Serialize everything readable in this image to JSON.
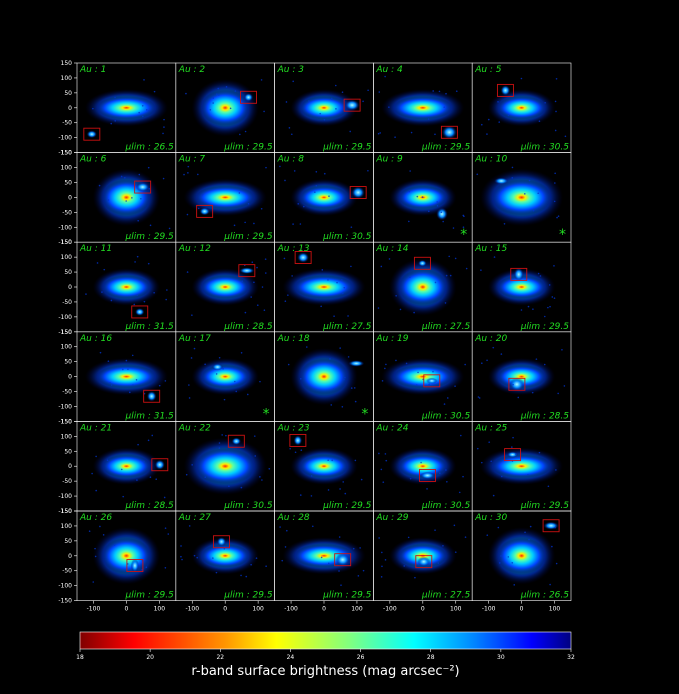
{
  "colors": {
    "background": "#000000",
    "panel_label": "#22dd22",
    "frame": "#ffffff",
    "box": "#cc1111",
    "tick_text": "#ffffff"
  },
  "chart_data": {
    "type": "heatmap",
    "layout": "6x5 grid of surface brightness maps",
    "xlim": [
      -150,
      150
    ],
    "ylim": [
      -150,
      150
    ],
    "x_ticks": [
      "-100",
      "0",
      "100"
    ],
    "y_ticks": [
      "150",
      "100",
      "50",
      "0",
      "-50",
      "-100",
      "-150"
    ],
    "colorbar": {
      "min": 18,
      "max": 32,
      "ticks": [
        "18",
        "20",
        "22",
        "24",
        "26",
        "28",
        "30",
        "32"
      ],
      "label": "r-band surface brightness (mag arcsec⁻²)",
      "colormap": "jet_r",
      "colors": [
        "#800000",
        "#ff0000",
        "#ff8000",
        "#ffff00",
        "#80ff80",
        "#00ffff",
        "#0080ff",
        "#0000ff",
        "#000080"
      ]
    },
    "panels": [
      {
        "label": "Au : 1",
        "mu_lim": "μlim : 26.5"
      },
      {
        "label": "Au : 2",
        "mu_lim": "μlim : 29.5"
      },
      {
        "label": "Au : 3",
        "mu_lim": "μlim : 29.5"
      },
      {
        "label": "Au : 4",
        "mu_lim": "μlim : 29.5"
      },
      {
        "label": "Au : 5",
        "mu_lim": "μlim : 30.5"
      },
      {
        "label": "Au : 6",
        "mu_lim": "μlim : 29.5"
      },
      {
        "label": "Au : 7",
        "mu_lim": "μlim : 29.5"
      },
      {
        "label": "Au : 8",
        "mu_lim": "μlim : 30.5"
      },
      {
        "label": "Au : 9",
        "mu_lim": "*"
      },
      {
        "label": "Au : 10",
        "mu_lim": "*"
      },
      {
        "label": "Au : 11",
        "mu_lim": "μlim : 31.5"
      },
      {
        "label": "Au : 12",
        "mu_lim": "μlim : 28.5"
      },
      {
        "label": "Au : 13",
        "mu_lim": "μlim : 27.5"
      },
      {
        "label": "Au : 14",
        "mu_lim": "μlim : 27.5"
      },
      {
        "label": "Au : 15",
        "mu_lim": "μlim : 29.5"
      },
      {
        "label": "Au : 16",
        "mu_lim": "μlim : 31.5"
      },
      {
        "label": "Au : 17",
        "mu_lim": "*"
      },
      {
        "label": "Au : 18",
        "mu_lim": "*"
      },
      {
        "label": "Au : 19",
        "mu_lim": "μlim : 30.5"
      },
      {
        "label": "Au : 20",
        "mu_lim": "μlim : 28.5"
      },
      {
        "label": "Au : 21",
        "mu_lim": "μlim : 28.5"
      },
      {
        "label": "Au : 22",
        "mu_lim": "μlim : 30.5"
      },
      {
        "label": "Au : 23",
        "mu_lim": "μlim : 29.5"
      },
      {
        "label": "Au : 24",
        "mu_lim": "μlim : 30.5"
      },
      {
        "label": "Au : 25",
        "mu_lim": "μlim : 29.5"
      },
      {
        "label": "Au : 26",
        "mu_lim": "μlim : 29.5"
      },
      {
        "label": "Au : 27",
        "mu_lim": "μlim : 29.5"
      },
      {
        "label": "Au : 28",
        "mu_lim": "μlim : 29.5"
      },
      {
        "label": "Au : 29",
        "mu_lim": "μlim : 27.5"
      },
      {
        "label": "Au : 30",
        "mu_lim": "μlim : 26.5"
      }
    ]
  }
}
